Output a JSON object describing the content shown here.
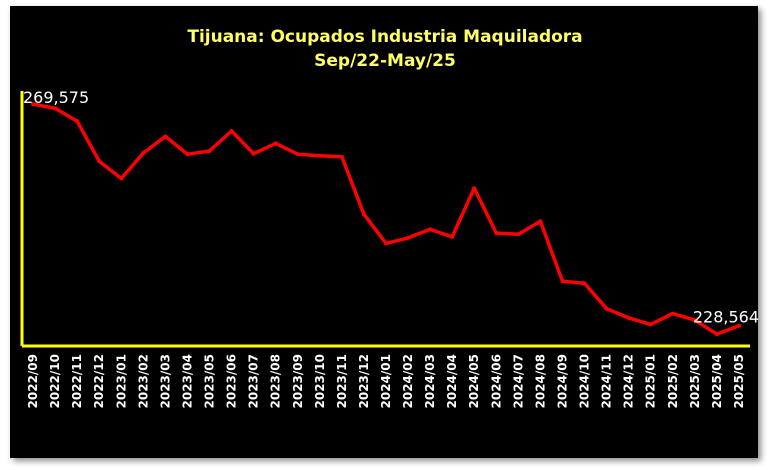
{
  "chart_data": {
    "type": "line",
    "title": "Tijuana: Ocupados Industria Maquiladora",
    "subtitle": "Sep/22-May/25",
    "categories": [
      "2022/09",
      "2022/10",
      "2022/11",
      "2022/12",
      "2023/01",
      "2023/02",
      "2023/03",
      "2023/04",
      "2023/05",
      "2023/06",
      "2023/07",
      "2023/08",
      "2023/09",
      "2023/10",
      "2023/11",
      "2023/12",
      "2024/01",
      "2024/02",
      "2024/03",
      "2024/04",
      "2024/05",
      "2024/06",
      "2024/07",
      "2024/08",
      "2024/09",
      "2024/10",
      "2024/11",
      "2024/12",
      "2025/01",
      "2025/02",
      "2025/03",
      "2025/04",
      "2025/05"
    ],
    "series": [
      {
        "values": [
          269575,
          268800,
          266400,
          259000,
          255800,
          260500,
          263600,
          260300,
          260900,
          264600,
          260400,
          262300,
          260300,
          260000,
          259800,
          249200,
          243800,
          244800,
          246400,
          245000,
          254000,
          245700,
          245500,
          247900,
          236800,
          236400,
          231700,
          230000,
          228800,
          230800,
          229600,
          227000,
          228564
        ],
        "color": "#ff0000"
      }
    ],
    "annotations": [
      {
        "index": 0,
        "text": "269,575"
      },
      {
        "index": 32,
        "text": "228,564"
      }
    ],
    "ylim": [
      224800,
      272000
    ],
    "axis_color": "#ffff00",
    "background": "#000000",
    "grid": false,
    "legend": "none"
  }
}
